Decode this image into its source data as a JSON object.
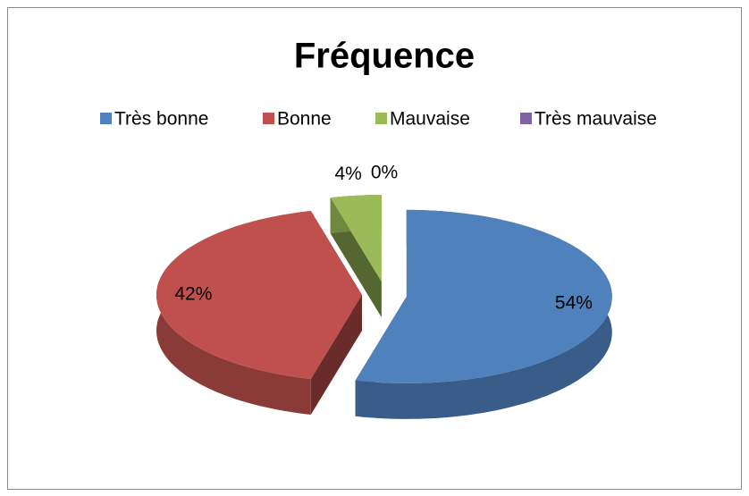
{
  "chart_data": {
    "type": "pie",
    "title": "Fréquence",
    "categories": [
      "Très bonne",
      "Bonne",
      "Mauvaise",
      "Très mauvaise"
    ],
    "values": [
      54,
      42,
      4,
      0
    ],
    "value_labels": [
      "54%",
      "42%",
      "4%",
      "0%"
    ],
    "colors": [
      "#4f81bd",
      "#c0504d",
      "#9bbb59",
      "#8064a2"
    ],
    "legend": "top"
  }
}
